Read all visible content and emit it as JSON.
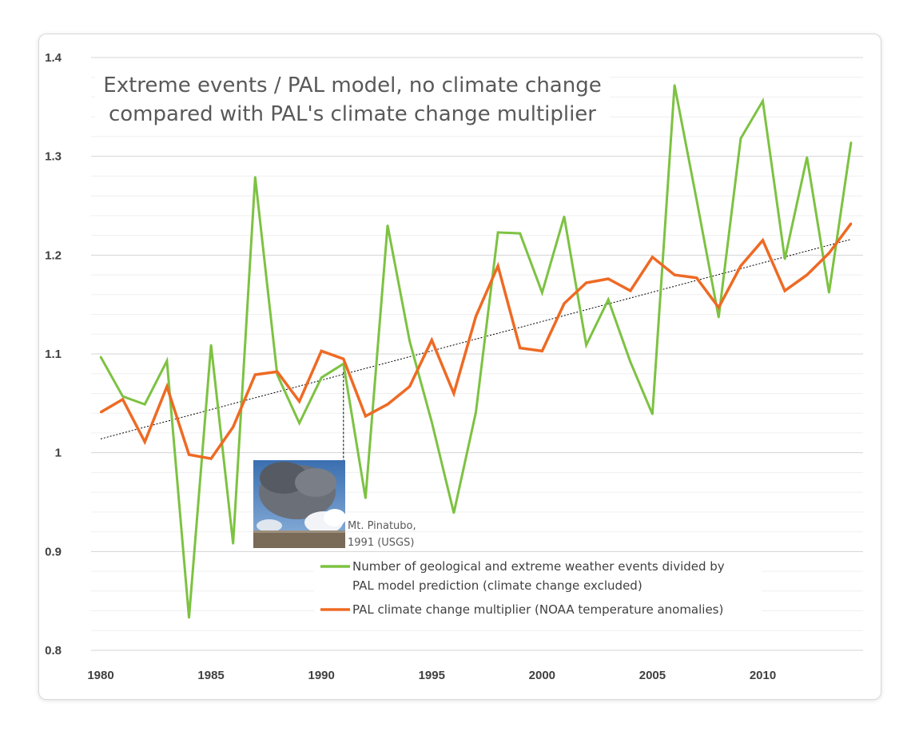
{
  "chart_data": {
    "type": "line",
    "title_lines": [
      "Extreme events / PAL model, no climate change",
      "compared with PAL's climate change multiplier"
    ],
    "xlabel": "",
    "ylabel": "",
    "xlim": [
      1980,
      2014
    ],
    "ylim": [
      0.8,
      1.4
    ],
    "x_ticks": [
      "1980",
      "1985",
      "1990",
      "1995",
      "2000",
      "2005",
      "2010"
    ],
    "y_ticks": [
      "0.8",
      "0.9",
      "1",
      "1.1",
      "1.2",
      "1.3",
      "1.4"
    ],
    "grid": true,
    "legend_placement": "bottom-right",
    "x": [
      1980,
      1981,
      1982,
      1983,
      1984,
      1985,
      1986,
      1987,
      1988,
      1989,
      1990,
      1991,
      1992,
      1993,
      1994,
      1995,
      1996,
      1997,
      1998,
      1999,
      2000,
      2001,
      2002,
      2003,
      2004,
      2005,
      2006,
      2007,
      2008,
      2009,
      2010,
      2011,
      2012,
      2013,
      2014
    ],
    "series": [
      {
        "name": "Number of geological and extreme weather events divided by PAL model prediction (climate change excluded)",
        "legend_lines": [
          "Number of geological and extreme weather events divided by",
          "PAL model prediction (climate change excluded)"
        ],
        "color": "#7dc242",
        "values": [
          1.097,
          1.057,
          1.049,
          1.093,
          0.833,
          1.109,
          0.908,
          1.279,
          1.079,
          1.03,
          1.076,
          1.09,
          0.954,
          1.23,
          1.113,
          1.031,
          0.939,
          1.041,
          1.223,
          1.222,
          1.162,
          1.239,
          1.109,
          1.155,
          1.092,
          1.039,
          1.372,
          1.256,
          1.137,
          1.318,
          1.356,
          1.196,
          1.299,
          1.162,
          1.314
        ]
      },
      {
        "name": "PAL climate change multiplier (NOAA temperature anomalies)",
        "legend_lines": [
          "PAL climate change multiplier (NOAA temperature anomalies)"
        ],
        "color": "#ee6a24",
        "values": [
          1.041,
          1.054,
          1.011,
          1.067,
          0.998,
          0.994,
          1.026,
          1.079,
          1.082,
          1.052,
          1.103,
          1.095,
          1.037,
          1.049,
          1.067,
          1.114,
          1.06,
          1.138,
          1.189,
          1.106,
          1.103,
          1.151,
          1.172,
          1.176,
          1.164,
          1.198,
          1.18,
          1.177,
          1.147,
          1.189,
          1.215,
          1.164,
          1.18,
          1.202,
          1.232
        ]
      }
    ],
    "trendline": {
      "style": "dotted",
      "color": "#000000",
      "from": [
        1980,
        1.014
      ],
      "to": [
        2014,
        1.216
      ]
    },
    "annotation": {
      "lines": [
        "Mt. Pinatubo,",
        "1991 (USGS)"
      ],
      "year": 1991,
      "image": "volcanic-eruption-photo"
    }
  }
}
